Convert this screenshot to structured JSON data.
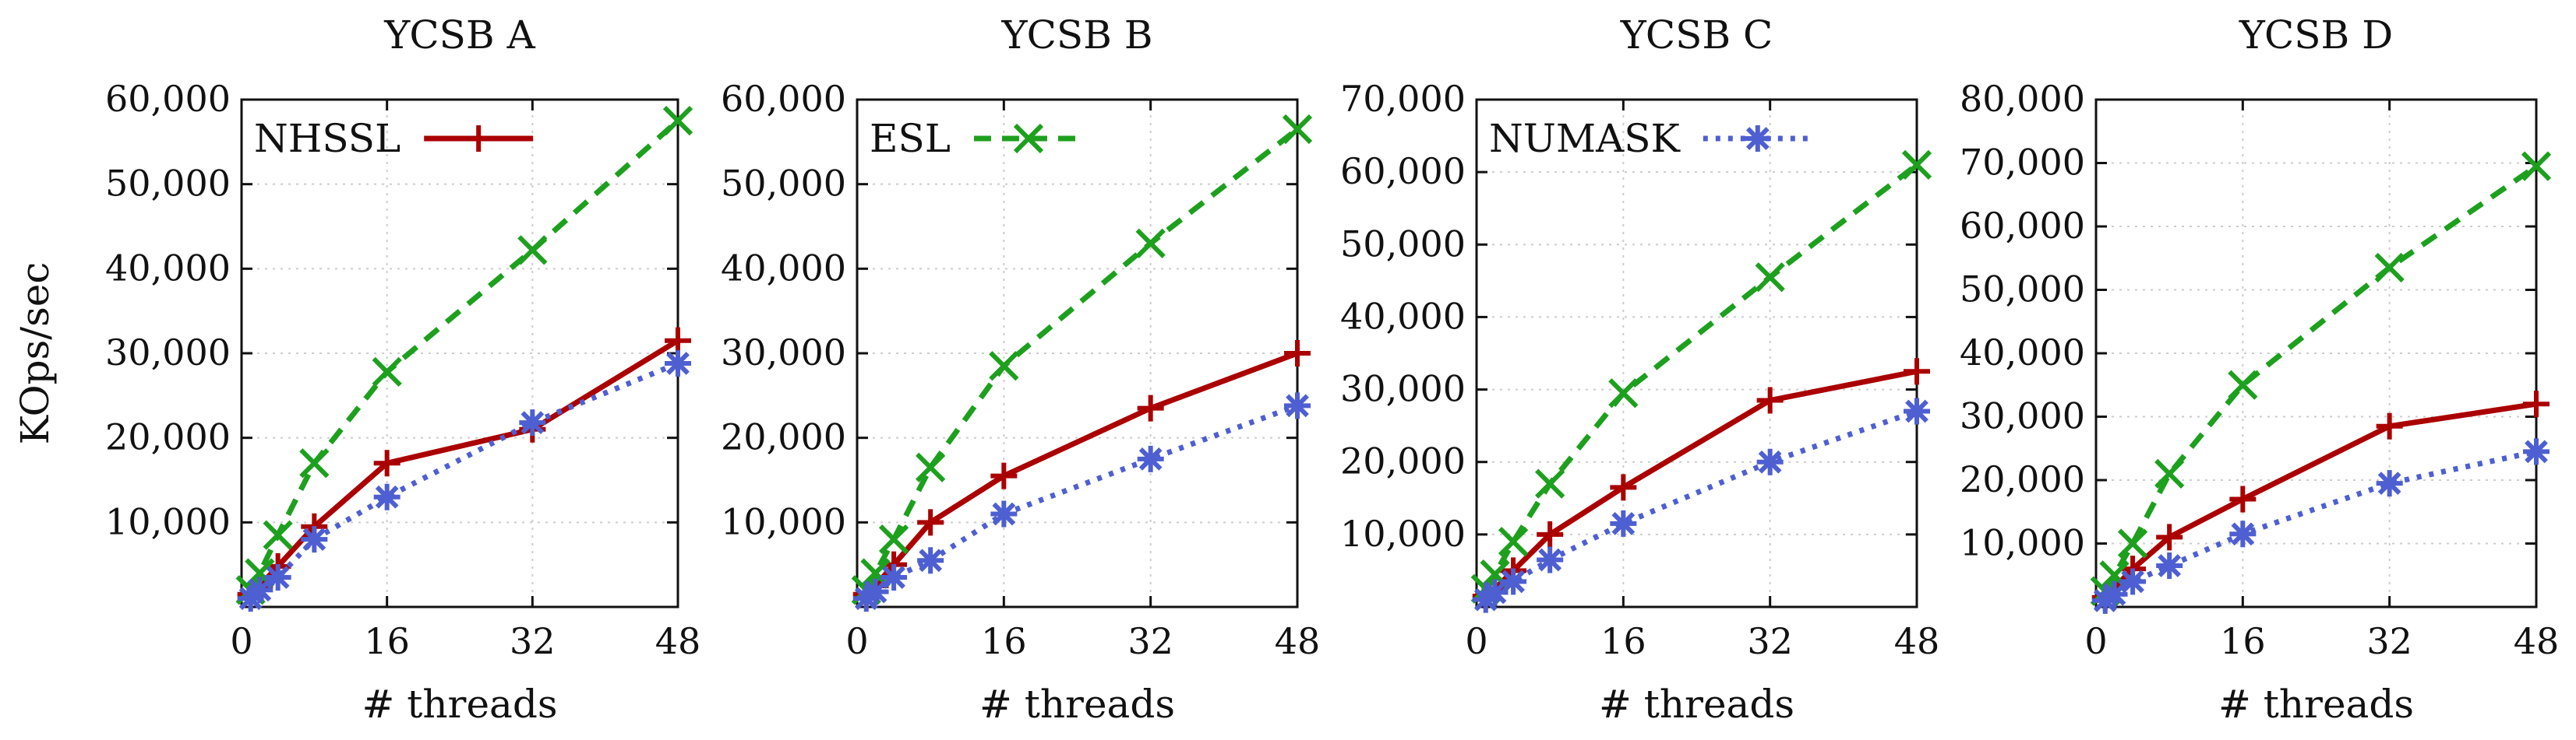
{
  "chart_data": [
    {
      "type": "line",
      "title": "YCSB A",
      "xlabel": "# threads",
      "ylabel": "KOps/sec",
      "xlim": [
        0,
        48
      ],
      "ylim": [
        0,
        60000
      ],
      "xticks": [
        0,
        16,
        32,
        48
      ],
      "yticks": [
        10000,
        20000,
        30000,
        40000,
        50000,
        60000
      ],
      "ytick_labels": [
        "10,000",
        "20,000",
        "30,000",
        "40,000",
        "50,000",
        "60,000"
      ],
      "grid": true,
      "legend": {
        "series": "NHSSL",
        "placement": "top-left"
      },
      "x": [
        1,
        2,
        4,
        8,
        16,
        32,
        48
      ],
      "series": [
        {
          "name": "NHSSL",
          "color": "#aa0000",
          "marker": "plus",
          "dash": "solid",
          "values": [
            1500,
            2500,
            4800,
            9500,
            17000,
            21000,
            31500
          ]
        },
        {
          "name": "ESL",
          "color": "#1da01d",
          "marker": "x",
          "dash": "dashed",
          "values": [
            2000,
            4000,
            8500,
            17000,
            27800,
            42200,
            57500
          ]
        },
        {
          "name": "NUMASK",
          "color": "#4d5fd1",
          "marker": "asterisk",
          "dash": "dotted",
          "values": [
            1000,
            2000,
            3500,
            8000,
            13000,
            21800,
            28800
          ]
        }
      ]
    },
    {
      "type": "line",
      "title": "YCSB B",
      "xlabel": "# threads",
      "ylabel": "",
      "xlim": [
        0,
        48
      ],
      "ylim": [
        0,
        60000
      ],
      "xticks": [
        0,
        16,
        32,
        48
      ],
      "yticks": [
        10000,
        20000,
        30000,
        40000,
        50000,
        60000
      ],
      "ytick_labels": [
        "10,000",
        "20,000",
        "30,000",
        "40,000",
        "50,000",
        "60,000"
      ],
      "grid": true,
      "legend": {
        "series": "ESL",
        "placement": "top-left"
      },
      "x": [
        1,
        2,
        4,
        8,
        16,
        32,
        48
      ],
      "series": [
        {
          "name": "NHSSL",
          "color": "#aa0000",
          "marker": "plus",
          "dash": "solid",
          "values": [
            1500,
            2500,
            5000,
            10000,
            15500,
            23500,
            30000
          ]
        },
        {
          "name": "ESL",
          "color": "#1da01d",
          "marker": "x",
          "dash": "dashed",
          "values": [
            2000,
            4000,
            8000,
            16500,
            28500,
            43000,
            56500
          ]
        },
        {
          "name": "NUMASK",
          "color": "#4d5fd1",
          "marker": "asterisk",
          "dash": "dotted",
          "values": [
            1000,
            1800,
            3500,
            5500,
            11000,
            17500,
            23800
          ]
        }
      ]
    },
    {
      "type": "line",
      "title": "YCSB C",
      "xlabel": "# threads",
      "ylabel": "",
      "xlim": [
        0,
        48
      ],
      "ylim": [
        0,
        70000
      ],
      "xticks": [
        0,
        16,
        32,
        48
      ],
      "yticks": [
        10000,
        20000,
        30000,
        40000,
        50000,
        60000,
        70000
      ],
      "ytick_labels": [
        "10,000",
        "20,000",
        "30,000",
        "40,000",
        "50,000",
        "60,000",
        "70,000"
      ],
      "grid": true,
      "legend": {
        "series": "NUMASK",
        "placement": "top-left"
      },
      "x": [
        1,
        2,
        4,
        8,
        16,
        32,
        48
      ],
      "series": [
        {
          "name": "NHSSL",
          "color": "#aa0000",
          "marker": "plus",
          "dash": "solid",
          "values": [
            1500,
            2500,
            5000,
            10000,
            16500,
            28500,
            32500
          ]
        },
        {
          "name": "ESL",
          "color": "#1da01d",
          "marker": "x",
          "dash": "dashed",
          "values": [
            2500,
            4500,
            9000,
            17000,
            29500,
            45500,
            61000
          ]
        },
        {
          "name": "NUMASK",
          "color": "#4d5fd1",
          "marker": "asterisk",
          "dash": "dotted",
          "values": [
            1000,
            2000,
            3500,
            6500,
            11500,
            20000,
            27000
          ]
        }
      ]
    },
    {
      "type": "line",
      "title": "YCSB D",
      "xlabel": "# threads",
      "ylabel": "",
      "xlim": [
        0,
        48
      ],
      "ylim": [
        0,
        80000
      ],
      "xticks": [
        0,
        16,
        32,
        48
      ],
      "yticks": [
        10000,
        20000,
        30000,
        40000,
        50000,
        60000,
        70000,
        80000
      ],
      "ytick_labels": [
        "10,000",
        "20,000",
        "30,000",
        "40,000",
        "50,000",
        "60,000",
        "70,000",
        "80,000"
      ],
      "grid": true,
      "legend": null,
      "x": [
        1,
        2,
        4,
        8,
        16,
        32,
        48
      ],
      "series": [
        {
          "name": "NHSSL",
          "color": "#aa0000",
          "marker": "plus",
          "dash": "solid",
          "values": [
            1500,
            3000,
            6000,
            11000,
            17000,
            28500,
            32000
          ]
        },
        {
          "name": "ESL",
          "color": "#1da01d",
          "marker": "x",
          "dash": "dashed",
          "values": [
            2500,
            5000,
            10000,
            21000,
            35000,
            53500,
            69500
          ]
        },
        {
          "name": "NUMASK",
          "color": "#4d5fd1",
          "marker": "asterisk",
          "dash": "dotted",
          "values": [
            1000,
            2000,
            4000,
            6500,
            11500,
            19500,
            24500
          ]
        }
      ]
    }
  ]
}
